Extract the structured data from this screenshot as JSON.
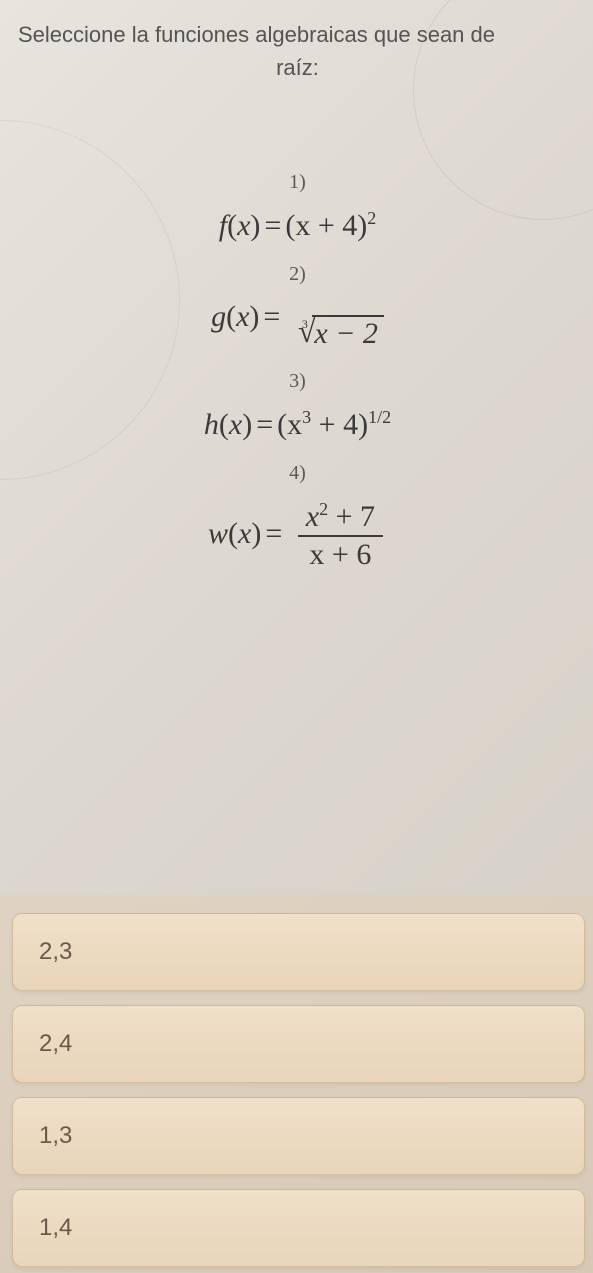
{
  "question": {
    "line1": "Seleccione la funciones algebraicas que sean de",
    "line2": "raíz:"
  },
  "equations": {
    "eq1": {
      "num": "1)",
      "fn": "f",
      "var": "x",
      "rhs_base": "(x + 4)",
      "rhs_exp": "2"
    },
    "eq2": {
      "num": "2)",
      "fn": "g",
      "var": "x",
      "rad_index": "3",
      "rad_body": "x − 2"
    },
    "eq3": {
      "num": "3)",
      "fn": "h",
      "var": "x",
      "rhs_base": "(x",
      "rhs_base_exp": "3",
      "rhs_base_tail": " + 4)",
      "rhs_exp": "1/2"
    },
    "eq4": {
      "num": "4)",
      "fn": "w",
      "var": "x",
      "frac_top_a": "x",
      "frac_top_exp": "2",
      "frac_top_tail": " + 7",
      "frac_bot": "x + 6"
    }
  },
  "options": [
    {
      "label": "2,3"
    },
    {
      "label": "2,4"
    },
    {
      "label": "1,3"
    },
    {
      "label": "1,4"
    }
  ],
  "style": {
    "bg_gradient_from": "#e8e4de",
    "bg_gradient_to": "#d5cfc5",
    "question_color": "#545454",
    "question_fontsize": 22,
    "formula_color": "#3a3a3a",
    "formula_fontsize": 30,
    "option_bg_from": "#f0e0c8",
    "option_bg_to": "#e8d5ba",
    "option_border": "rgba(160,130,90,0.35)",
    "option_text_color": "#6a5a48",
    "option_fontsize": 24,
    "option_height": 78,
    "option_radius": 10
  }
}
